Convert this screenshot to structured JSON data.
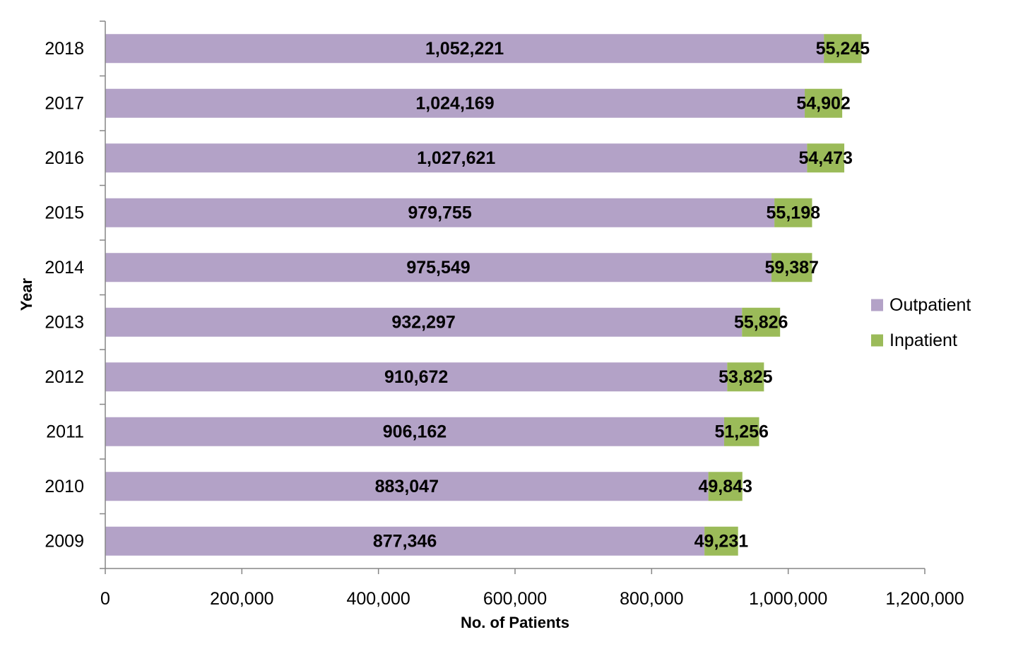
{
  "chart_data": {
    "type": "bar",
    "orientation": "horizontal",
    "stacked": true,
    "title": "",
    "xlabel": "No. of Patients",
    "ylabel": "Year",
    "xlim": [
      0,
      1200000
    ],
    "x_ticks": [
      0,
      200000,
      400000,
      600000,
      800000,
      1000000,
      1200000
    ],
    "x_tick_labels": [
      "0",
      "200,000",
      "400,000",
      "600,000",
      "800,000",
      "1,000,000",
      "1,200,000"
    ],
    "categories": [
      "2018",
      "2017",
      "2016",
      "2015",
      "2014",
      "2013",
      "2012",
      "2011",
      "2010",
      "2009"
    ],
    "series": [
      {
        "name": "Outpatient",
        "color": "#b3a2c7",
        "values": [
          1052221,
          1024169,
          1027621,
          979755,
          975549,
          932297,
          910672,
          906162,
          883047,
          877346
        ],
        "labels": [
          "1,052,221",
          "1,024,169",
          "1,027,621",
          "979,755",
          "975,549",
          "932,297",
          "910,672",
          "906,162",
          "883,047",
          "877,346"
        ]
      },
      {
        "name": "Inpatient",
        "color": "#9bbb59",
        "values": [
          55245,
          54902,
          54473,
          55198,
          59387,
          55826,
          53825,
          51256,
          49843,
          49231
        ],
        "labels": [
          "55,245",
          "54,902",
          "54,473",
          "55,198",
          "59,387",
          "55,826",
          "53,825",
          "51,256",
          "49,843",
          "49,231"
        ]
      }
    ],
    "grid": false,
    "legend_position": "right"
  }
}
